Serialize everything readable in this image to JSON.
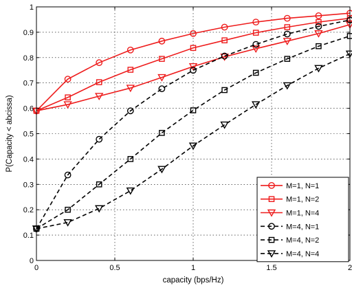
{
  "chart_data": {
    "type": "line",
    "title": "",
    "xlabel": "capacity (bps/Hz)",
    "ylabel": "P(Capacity < abcissa)",
    "xlim": [
      0,
      2
    ],
    "ylim": [
      0,
      1
    ],
    "xticks": [
      0,
      0.5,
      1,
      1.5,
      2
    ],
    "xtick_labels": [
      "0",
      "0.5",
      "1",
      "1.5",
      "2"
    ],
    "yticks": [
      0,
      0.1,
      0.2,
      0.3,
      0.4,
      0.5,
      0.6,
      0.7,
      0.8,
      0.9,
      1
    ],
    "ytick_labels": [
      "0",
      "0.1",
      "0.2",
      "0.3",
      "0.4",
      "0.5",
      "0.6",
      "0.7",
      "0.8",
      "0.9",
      "1"
    ],
    "grid": true,
    "legend_position": "bottom-right",
    "x": [
      0,
      0.2,
      0.4,
      0.6,
      0.8,
      1.0,
      1.2,
      1.4,
      1.6,
      1.8,
      2.0
    ],
    "series": [
      {
        "name": "M=1, N=1",
        "color": "#ee1c1c",
        "marker": "circle",
        "dash": "solid",
        "values": [
          0.59,
          0.715,
          0.78,
          0.83,
          0.865,
          0.895,
          0.92,
          0.94,
          0.955,
          0.965,
          0.975
        ]
      },
      {
        "name": "M=1, N=2",
        "color": "#ee1c1c",
        "marker": "square",
        "dash": "solid",
        "values": [
          0.59,
          0.643,
          0.703,
          0.752,
          0.795,
          0.838,
          0.868,
          0.898,
          0.92,
          0.94,
          0.955
        ]
      },
      {
        "name": "M=1, N=4",
        "color": "#ee1c1c",
        "marker": "triangle-down",
        "dash": "solid",
        "values": [
          0.59,
          0.615,
          0.648,
          0.68,
          0.722,
          0.765,
          0.803,
          0.835,
          0.865,
          0.895,
          0.93
        ]
      },
      {
        "name": "M=4, N=1",
        "color": "#000000",
        "marker": "circle",
        "dash": "dashed",
        "values": [
          0.125,
          0.337,
          0.478,
          0.59,
          0.677,
          0.75,
          0.806,
          0.852,
          0.893,
          0.923,
          0.948
        ]
      },
      {
        "name": "M=4, N=2",
        "color": "#000000",
        "marker": "square",
        "dash": "dashed",
        "values": [
          0.125,
          0.2,
          0.3,
          0.4,
          0.503,
          0.592,
          0.672,
          0.74,
          0.795,
          0.845,
          0.885
        ]
      },
      {
        "name": "M=4, N=4",
        "color": "#000000",
        "marker": "triangle-down",
        "dash": "dashed",
        "values": [
          0.125,
          0.15,
          0.205,
          0.275,
          0.36,
          0.452,
          0.535,
          0.615,
          0.69,
          0.758,
          0.815
        ]
      }
    ]
  }
}
